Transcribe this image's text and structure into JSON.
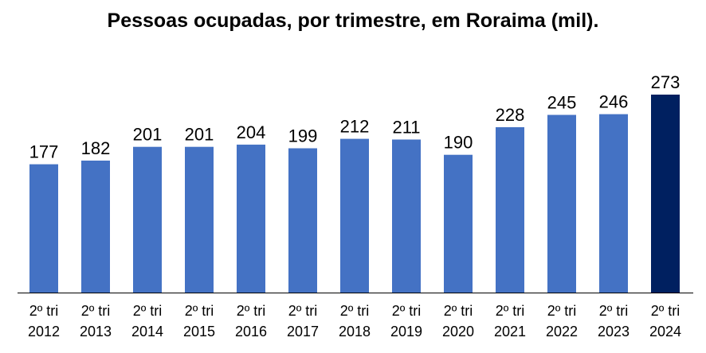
{
  "chart_data": {
    "type": "bar",
    "title": "Pessoas ocupadas, por trimestre, em Roraima (mil).",
    "xlabel": "",
    "ylabel": "",
    "categories": [
      [
        "2º tri",
        "2012"
      ],
      [
        "2º tri",
        "2013"
      ],
      [
        "2º tri",
        "2014"
      ],
      [
        "2º tri",
        "2015"
      ],
      [
        "2º tri",
        "2016"
      ],
      [
        "2º tri",
        "2017"
      ],
      [
        "2º tri",
        "2018"
      ],
      [
        "2º tri",
        "2019"
      ],
      [
        "2º tri",
        "2020"
      ],
      [
        "2º tri",
        "2021"
      ],
      [
        "2º tri",
        "2022"
      ],
      [
        "2º tri",
        "2023"
      ],
      [
        "2º tri",
        "2024"
      ]
    ],
    "values": [
      177,
      182,
      201,
      201,
      204,
      199,
      212,
      211,
      190,
      228,
      245,
      246,
      273
    ],
    "ylim": [
      0,
      273
    ],
    "grid": false,
    "legend": "none",
    "colors": {
      "bar": "#4472C4",
      "highlight_bar": "#002060",
      "axis": "#000000"
    },
    "highlight_index": 12
  }
}
